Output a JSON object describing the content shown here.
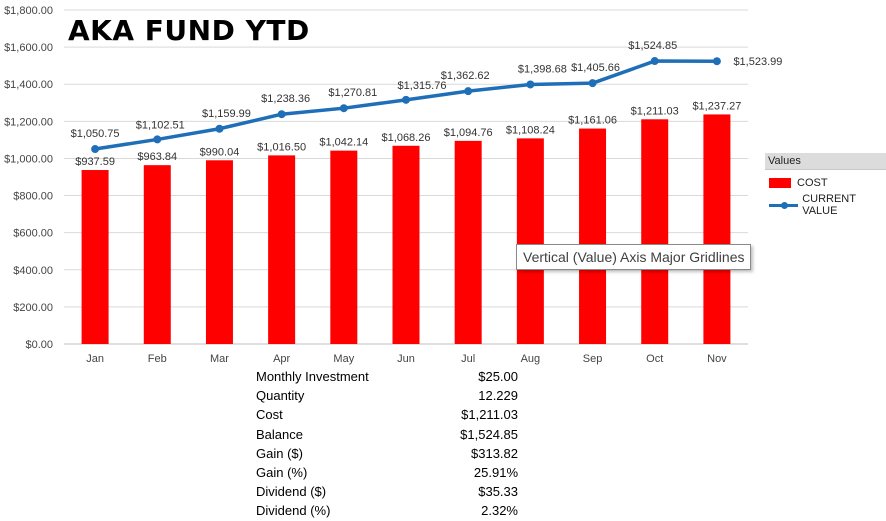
{
  "chart_data": {
    "type": "bar+line",
    "title": "AKA FUND YTD",
    "categories": [
      "Jan",
      "Feb",
      "Mar",
      "Apr",
      "May",
      "Jun",
      "Jul",
      "Aug",
      "Sep",
      "Oct",
      "Nov"
    ],
    "series": [
      {
        "name": "COST",
        "type": "bar",
        "color": "#ff0000",
        "values": [
          937.59,
          963.84,
          990.04,
          1016.5,
          1042.14,
          1068.26,
          1094.76,
          1108.24,
          1161.06,
          1211.03,
          1237.27
        ],
        "labels": [
          "$937.59",
          "$963.84",
          "$990.04",
          "$1,016.50",
          "$1,042.14",
          "$1,068.26",
          "$1,094.76",
          "$1,108.24",
          "$1,161.06",
          "$1,211.03",
          "$1,237.27"
        ]
      },
      {
        "name": "CURRENT VALUE",
        "type": "line",
        "color": "#1f6fb8",
        "values": [
          1050.75,
          1102.51,
          1159.99,
          1238.36,
          1270.81,
          1315.76,
          1362.62,
          1398.68,
          1405.66,
          1524.85,
          1523.99
        ],
        "labels": [
          "$1,050.75",
          "$1,102.51",
          "$1,159.99",
          "$1,238.36",
          "$1,270.81",
          "$1,315.76",
          "$1,362.62",
          "$1,398.68",
          "$1,405.66",
          "$1,524.85",
          "$1,523.99"
        ]
      }
    ],
    "ylim": [
      0,
      1800
    ],
    "yticks": [
      "$0.00",
      "$200.00",
      "$400.00",
      "$600.00",
      "$800.00",
      "$1,000.00",
      "$1,200.00",
      "$1,400.00",
      "$1,600.00",
      "$1,800.00"
    ],
    "xlabel": "",
    "ylabel": "",
    "grid": true,
    "legend": {
      "header": "Values",
      "placement": "right",
      "items": [
        "COST",
        "CURRENT VALUE"
      ]
    }
  },
  "tooltip": "Vertical (Value) Axis Major Gridlines",
  "summary": [
    {
      "label": "Monthly Investment",
      "value": "$25.00"
    },
    {
      "label": "Quantity",
      "value": "12.229"
    },
    {
      "label": "Cost",
      "value": "$1,211.03"
    },
    {
      "label": "Balance",
      "value": "$1,524.85"
    },
    {
      "label": "Gain ($)",
      "value": "$313.82"
    },
    {
      "label": "Gain (%)",
      "value": "25.91%"
    },
    {
      "label": "Dividend ($)",
      "value": "$35.33"
    },
    {
      "label": "Dividend (%)",
      "value": "2.32%"
    }
  ]
}
